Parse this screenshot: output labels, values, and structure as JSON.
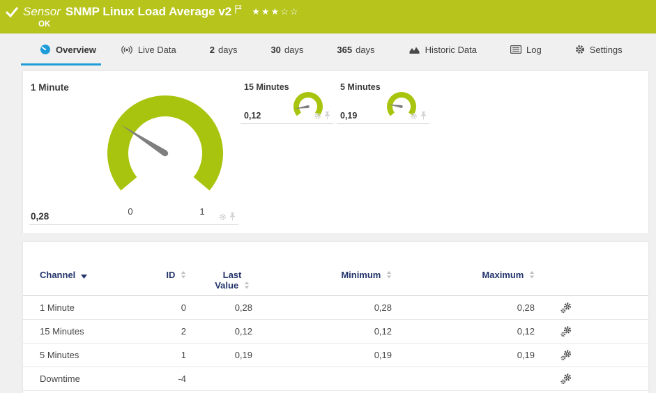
{
  "colors": {
    "header_green": "#b6c41c",
    "gauge_green": "#a9c40e",
    "accent_blue": "#1e9cd8",
    "table_header_navy": "#24356b",
    "needle_grey": "#7f7f7f"
  },
  "header": {
    "status_icon": "check",
    "kind_label": "Sensor",
    "title": "SNMP Linux Load Average v2",
    "status_text": "OK",
    "priority": {
      "filled": 3,
      "total": 5
    }
  },
  "tabs": [
    {
      "label": "Overview",
      "icon": "gauge-icon",
      "active": true
    },
    {
      "label": "Live Data",
      "icon": "live-icon",
      "active": false
    },
    {
      "prefix": "2",
      "label": "days",
      "active": false
    },
    {
      "prefix": "30",
      "label": "days",
      "active": false
    },
    {
      "prefix": "365",
      "label": "days",
      "active": false
    },
    {
      "label": "Historic Data",
      "icon": "chart-icon",
      "active": false
    },
    {
      "label": "Log",
      "icon": "log-icon",
      "active": false
    },
    {
      "label": "Settings",
      "icon": "gear-icon",
      "active": false
    }
  ],
  "chart_data": [
    {
      "type": "gauge",
      "title": "1 Minute",
      "value": 0.28,
      "value_display": "0,28",
      "min": 0,
      "max": 1,
      "tick_labels": [
        "0",
        "1"
      ],
      "arc_color": "#a9c40e"
    },
    {
      "type": "gauge",
      "title": "15 Minutes",
      "value": 0.12,
      "value_display": "0,12",
      "min": 0,
      "max": 1,
      "tick_labels": [],
      "arc_color": "#a9c40e"
    },
    {
      "type": "gauge",
      "title": "5 Minutes",
      "value": 0.19,
      "value_display": "0,19",
      "min": 0,
      "max": 1,
      "tick_labels": [],
      "arc_color": "#a9c40e"
    }
  ],
  "gauge_actions": [
    "settings",
    "pin"
  ],
  "table": {
    "columns": [
      {
        "label": "Channel",
        "sort": "desc"
      },
      {
        "label": "ID",
        "sort": "none"
      },
      {
        "label": "Last Value",
        "sort": "none"
      },
      {
        "label": "Minimum",
        "sort": "none"
      },
      {
        "label": "Maximum",
        "sort": "none"
      }
    ],
    "rows": [
      {
        "channel": "1 Minute",
        "id": "0",
        "last_value": "0,28",
        "minimum": "0,28",
        "maximum": "0,28"
      },
      {
        "channel": "15 Minutes",
        "id": "2",
        "last_value": "0,12",
        "minimum": "0,12",
        "maximum": "0,12"
      },
      {
        "channel": "5 Minutes",
        "id": "1",
        "last_value": "0,19",
        "minimum": "0,19",
        "maximum": "0,19"
      },
      {
        "channel": "Downtime",
        "id": "-4",
        "last_value": "",
        "minimum": "",
        "maximum": ""
      }
    ]
  }
}
